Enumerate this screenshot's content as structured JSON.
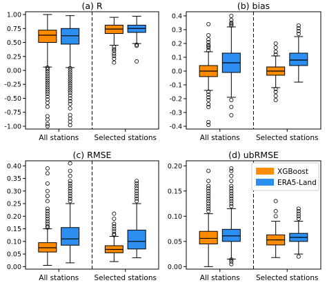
{
  "chart_data": [
    {
      "type": "box",
      "title": "(a) R",
      "groups": [
        "All stations",
        "Selected stations"
      ],
      "ylim": [
        -1.05,
        1.05
      ],
      "yticks": [
        "-1.00",
        "-0.75",
        "-0.50",
        "-0.25",
        "0.00",
        "0.25",
        "0.50",
        "0.75",
        "1.00"
      ],
      "series": [
        {
          "name": "XGBoost",
          "boxes": [
            {
              "whislo": 0.06,
              "q1": 0.5,
              "med": 0.63,
              "q3": 0.72,
              "whishi": 1.0,
              "fliers": [
                0.05,
                0.02,
                -0.02,
                -0.06,
                -0.1,
                -0.14,
                -0.18,
                -0.22,
                -0.26,
                -0.3,
                -0.34,
                -0.38,
                -0.42,
                -0.47,
                -0.52,
                -0.58,
                -0.65,
                -0.82,
                -0.88,
                -0.96,
                -1.0
              ]
            },
            {
              "whislo": 0.45,
              "q1": 0.66,
              "med": 0.74,
              "q3": 0.81,
              "whishi": 0.95,
              "fliers": [
                0.42,
                0.38,
                0.35,
                0.3,
                0.26,
                0.21,
                0.14
              ]
            }
          ]
        },
        {
          "name": "ERA5-Land",
          "boxes": [
            {
              "whislo": 0.05,
              "q1": 0.47,
              "med": 0.62,
              "q3": 0.75,
              "whishi": 0.98,
              "fliers": [
                0.04,
                0.0,
                -0.04,
                -0.08,
                -0.12,
                -0.16,
                -0.2,
                -0.24,
                -0.28,
                -0.32,
                -0.36,
                -0.4,
                -0.45,
                -0.5,
                -0.55,
                -0.6,
                -0.68,
                -0.8,
                -0.86,
                -0.92,
                -0.98
              ]
            },
            {
              "whislo": 0.48,
              "q1": 0.68,
              "med": 0.75,
              "q3": 0.81,
              "whishi": 0.97,
              "fliers": [
                0.46,
                0.44,
                0.16
              ]
            }
          ]
        }
      ]
    },
    {
      "type": "box",
      "title": "(b) bias",
      "groups": [
        "All stations",
        "Selected stations"
      ],
      "ylim": [
        -0.42,
        0.43
      ],
      "yticks": [
        "-0.4",
        "-0.3",
        "-0.2",
        "-0.1",
        "0.0",
        "0.1",
        "0.2",
        "0.3",
        "0.4"
      ],
      "series": [
        {
          "name": "XGBoost",
          "boxes": [
            {
              "whislo": -0.14,
              "q1": -0.04,
              "med": 0.0,
              "q3": 0.04,
              "whishi": 0.14,
              "fliers": [
                0.15,
                0.17,
                0.18,
                0.19,
                0.21,
                0.23,
                0.26,
                0.34,
                -0.15,
                -0.17,
                -0.19,
                -0.21,
                -0.24,
                -0.26,
                -0.37,
                -0.39
              ]
            },
            {
              "whislo": -0.12,
              "q1": -0.03,
              "med": 0.0,
              "q3": 0.03,
              "whishi": 0.11,
              "fliers": [
                0.12,
                0.14,
                0.17,
                0.2,
                -0.13,
                -0.15,
                -0.18,
                -0.21
              ]
            }
          ]
        },
        {
          "name": "ERA5-Land",
          "boxes": [
            {
              "whislo": -0.19,
              "q1": -0.01,
              "med": 0.06,
              "q3": 0.13,
              "whishi": 0.32,
              "fliers": [
                0.33,
                0.34,
                0.35,
                0.37,
                0.4,
                -0.21,
                -0.26,
                -0.32
              ]
            },
            {
              "whislo": -0.08,
              "q1": 0.04,
              "med": 0.08,
              "q3": 0.13,
              "whishi": 0.25,
              "fliers": [
                0.27,
                0.29,
                0.31,
                0.33
              ]
            }
          ]
        }
      ]
    },
    {
      "type": "box",
      "title": "(c) RMSE",
      "groups": [
        "All stations",
        "Selected stations"
      ],
      "ylim": [
        -0.01,
        0.42
      ],
      "yticks": [
        "0.00",
        "0.05",
        "0.10",
        "0.15",
        "0.20",
        "0.25",
        "0.30",
        "0.35",
        "0.40"
      ],
      "series": [
        {
          "name": "XGBoost",
          "boxes": [
            {
              "whislo": 0.005,
              "q1": 0.058,
              "med": 0.075,
              "q3": 0.095,
              "whishi": 0.15,
              "fliers": [
                0.155,
                0.16,
                0.17,
                0.18,
                0.19,
                0.2,
                0.21,
                0.22,
                0.23,
                0.26,
                0.28,
                0.3,
                0.33,
                0.37,
                0.39
              ]
            },
            {
              "whislo": 0.02,
              "q1": 0.055,
              "med": 0.068,
              "q3": 0.083,
              "whishi": 0.12,
              "fliers": [
                0.125,
                0.13,
                0.14,
                0.15,
                0.16,
                0.17,
                0.19,
                0.21
              ]
            }
          ]
        },
        {
          "name": "ERA5-Land",
          "boxes": [
            {
              "whislo": 0.015,
              "q1": 0.085,
              "med": 0.11,
              "q3": 0.155,
              "whishi": 0.25,
              "fliers": [
                0.26,
                0.27,
                0.28,
                0.29,
                0.3,
                0.31,
                0.32,
                0.33,
                0.34,
                0.36,
                0.38,
                0.41
              ]
            },
            {
              "whislo": 0.035,
              "q1": 0.07,
              "med": 0.1,
              "q3": 0.145,
              "whishi": 0.25,
              "fliers": [
                0.26,
                0.27,
                0.28,
                0.29,
                0.3,
                0.31,
                0.32,
                0.33,
                0.34
              ]
            }
          ]
        }
      ]
    },
    {
      "type": "box",
      "title": "(d) ubRMSE",
      "groups": [
        "All stations",
        "Selected stations"
      ],
      "ylim": [
        -0.005,
        0.21
      ],
      "yticks": [
        "0.00",
        "0.05",
        "0.10",
        "0.15",
        "0.20"
      ],
      "legend": {
        "position": "top-right",
        "entries": [
          "XGBoost",
          "ERA5-Land"
        ]
      },
      "series": [
        {
          "name": "XGBoost",
          "boxes": [
            {
              "whislo": 0.0,
              "q1": 0.045,
              "med": 0.056,
              "q3": 0.07,
              "whishi": 0.105,
              "fliers": [
                0.11,
                0.115,
                0.12,
                0.125,
                0.13,
                0.135,
                0.14,
                0.145,
                0.15,
                0.155,
                0.16,
                0.17,
                0.19
              ]
            },
            {
              "whislo": 0.018,
              "q1": 0.043,
              "med": 0.053,
              "q3": 0.063,
              "whishi": 0.09,
              "fliers": [
                0.1,
                0.11,
                0.13
              ]
            }
          ]
        },
        {
          "name": "ERA5-Land",
          "boxes": [
            {
              "whislo": 0.015,
              "q1": 0.05,
              "med": 0.061,
              "q3": 0.074,
              "whishi": 0.115,
              "fliers": [
                0.12,
                0.125,
                0.13,
                0.135,
                0.14,
                0.145,
                0.15,
                0.155,
                0.16,
                0.17,
                0.18,
                0.19,
                0.195,
                0.005,
                0.01,
                0.014
              ]
            },
            {
              "whislo": 0.025,
              "q1": 0.05,
              "med": 0.058,
              "q3": 0.066,
              "whishi": 0.09,
              "fliers": [
                0.095,
                0.1,
                0.105,
                0.11,
                0.115,
                0.02
              ]
            }
          ]
        }
      ]
    }
  ],
  "colors": {
    "XGBoost": "#ff8c00",
    "ERA5-Land": "#2b8ef0"
  }
}
